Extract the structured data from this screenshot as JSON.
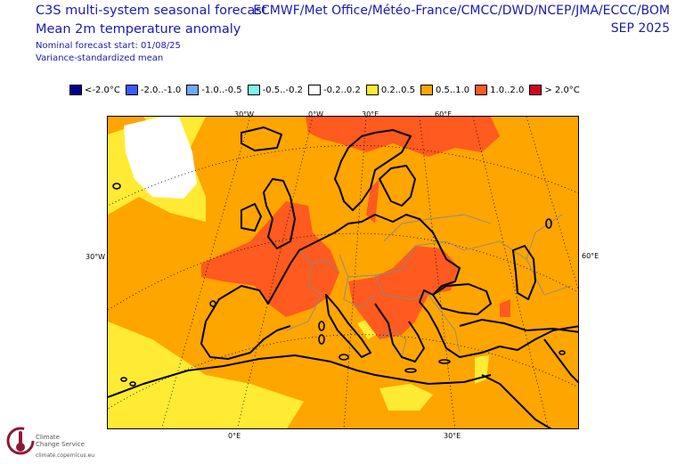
{
  "header": {
    "title_line1": "C3S multi-system seasonal forecast",
    "title_line2": "Mean 2m temperature anomaly",
    "subtitle_line1": "Nominal forecast start: 01/08/25",
    "subtitle_line2": "Variance-standardized mean",
    "sources": "ECMWF/Met Office/Météo-France/CMCC/DWD/NCEP/JMA/ECCC/BOM",
    "valid_month": "SEP 2025"
  },
  "legend": [
    {
      "label": "<-2.0°C",
      "color": "#00008b"
    },
    {
      "label": "-2.0..-1.0",
      "color": "#3a5cff"
    },
    {
      "label": "-1.0..-0.5",
      "color": "#6fa8ff"
    },
    {
      "label": "-0.5..-0.2",
      "color": "#7ff2f2"
    },
    {
      "label": "-0.2..0.2",
      "color": "#ffffff"
    },
    {
      "label": "0.2..0.5",
      "color": "#ffeb33"
    },
    {
      "label": "0.5..1.0",
      "color": "#ffa500"
    },
    {
      "label": "1.0..2.0",
      "color": "#ff5a1f"
    },
    {
      "label": "> 2.0°C",
      "color": "#d0021b"
    }
  ],
  "axis_labels": {
    "top": [
      "30°W",
      "0°W",
      "30°E",
      "60°E"
    ],
    "left": [
      "30°W"
    ],
    "right": [
      "60°E"
    ],
    "bottom": [
      "0°E",
      "30°E"
    ]
  },
  "logo": {
    "line1": "Climate",
    "line2": "Change Service",
    "url": "climate.copernicus.eu"
  },
  "colors": {
    "ocean_base": "#ffa500",
    "warm": "#ff5a1f",
    "cool": "#ffeb33",
    "neutral": "#ffffff",
    "coast": "#000000",
    "border": "#8a8a8a"
  }
}
